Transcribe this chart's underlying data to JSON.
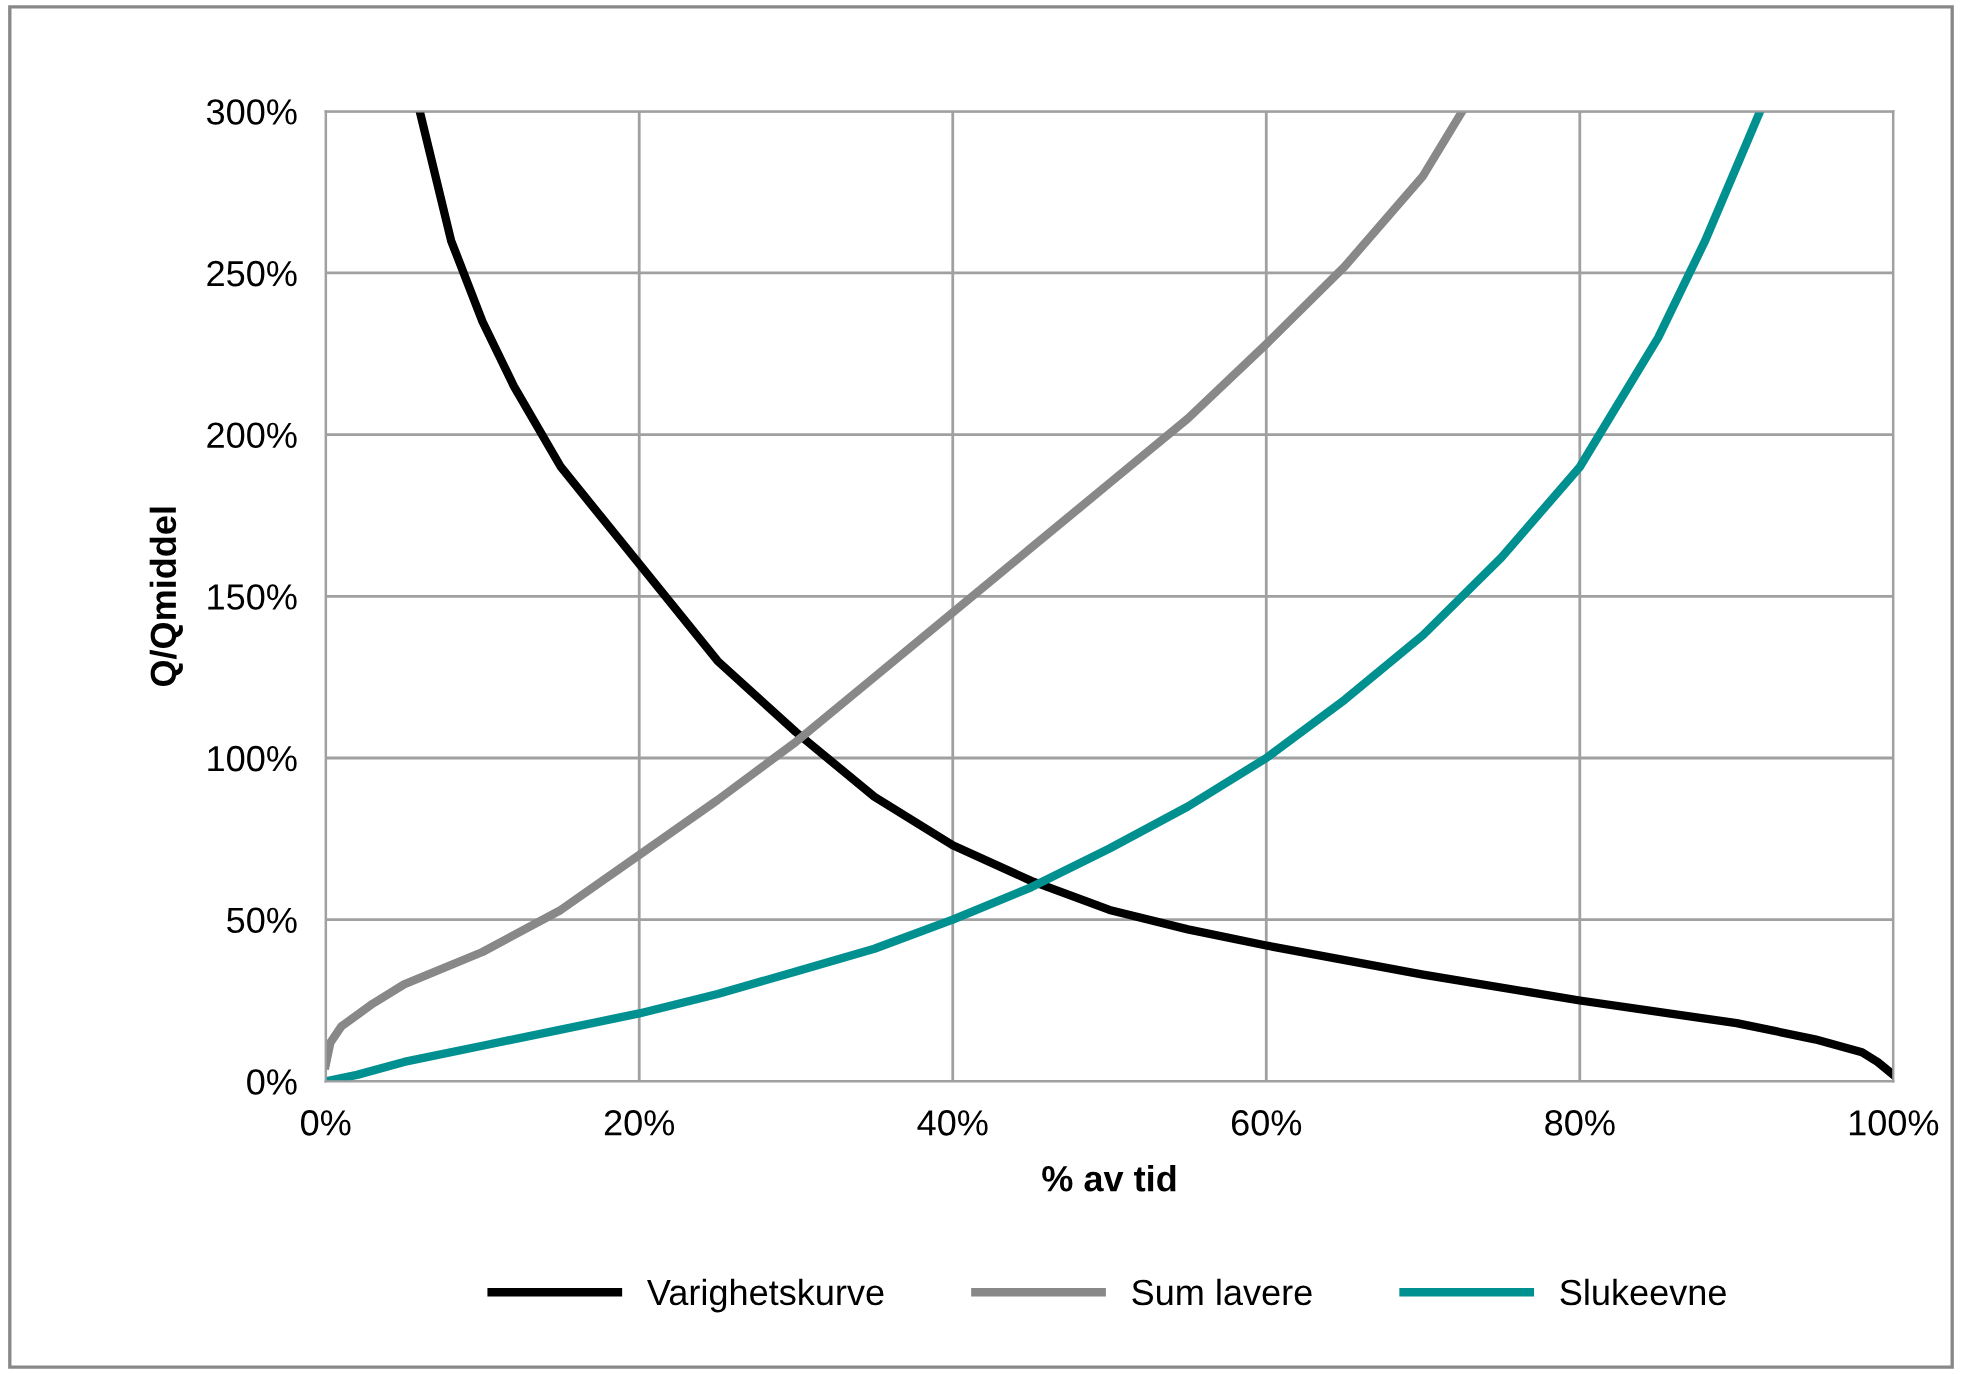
{
  "chart_data": {
    "type": "line",
    "xlabel": "% av tid",
    "ylabel": "Q/Qmiddel",
    "xlim": [
      0,
      100
    ],
    "ylim": [
      0,
      300
    ],
    "xticks": [
      {
        "value": 0,
        "label": "0%"
      },
      {
        "value": 20,
        "label": "20%"
      },
      {
        "value": 40,
        "label": "40%"
      },
      {
        "value": 60,
        "label": "60%"
      },
      {
        "value": 80,
        "label": "80%"
      },
      {
        "value": 100,
        "label": "100%"
      }
    ],
    "yticks": [
      {
        "value": 0,
        "label": "0%"
      },
      {
        "value": 50,
        "label": "50%"
      },
      {
        "value": 100,
        "label": "100%"
      },
      {
        "value": 150,
        "label": "150%"
      },
      {
        "value": 200,
        "label": "200%"
      },
      {
        "value": 250,
        "label": "250%"
      },
      {
        "value": 300,
        "label": "300%"
      }
    ],
    "grid": true,
    "legend": "bottom",
    "marker": "none",
    "line_style": "solid",
    "series": [
      {
        "name": "Varighetskurve",
        "color": "#000000",
        "x": [
          6,
          8,
          10,
          12,
          15,
          20,
          25,
          30,
          35,
          40,
          45,
          50,
          55,
          60,
          70,
          80,
          90,
          95,
          98,
          99,
          100
        ],
        "values": [
          300,
          260,
          235,
          215,
          190,
          160,
          130,
          108,
          88,
          73,
          62,
          53,
          47,
          42,
          33,
          25,
          18,
          13,
          9,
          6,
          2
        ]
      },
      {
        "name": "Sum lavere",
        "color": "#888888",
        "x": [
          0,
          0.3,
          1,
          3,
          5,
          10,
          15,
          20,
          25,
          30,
          35,
          40,
          45,
          50,
          55,
          60,
          65,
          70,
          72.5
        ],
        "values": [
          5,
          12,
          17,
          24,
          30,
          40,
          53,
          70,
          87,
          105,
          125,
          145,
          165,
          185,
          205,
          228,
          252,
          280,
          300
        ]
      },
      {
        "name": "Slukeevne",
        "color": "#009090",
        "x": [
          0,
          2,
          5,
          10,
          15,
          20,
          25,
          30,
          35,
          40,
          45,
          50,
          55,
          60,
          65,
          70,
          75,
          80,
          85,
          88,
          91.5
        ],
        "values": [
          0,
          2,
          6,
          11,
          16,
          21,
          27,
          34,
          41,
          50,
          60,
          72,
          85,
          100,
          118,
          138,
          162,
          190,
          230,
          260,
          300
        ]
      }
    ]
  }
}
